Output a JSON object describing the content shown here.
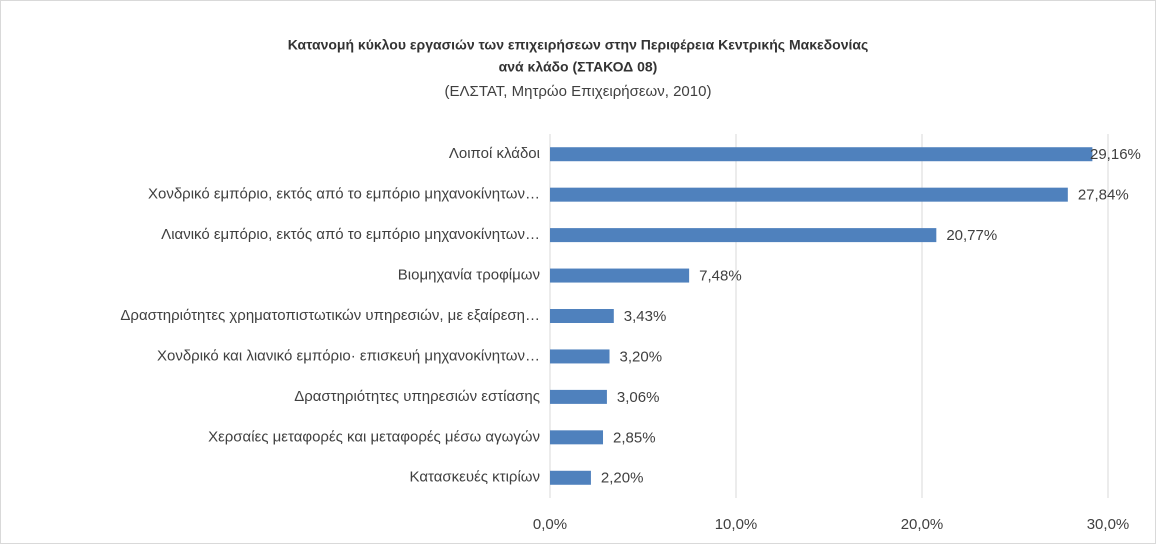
{
  "chart_data": {
    "type": "hbar",
    "title": [
      "Κατανομή κύκλου εργασιών των επιχειρήσεων στην Περιφέρεια Κεντρικής Μακεδονίας",
      "ανά κλάδο (ΣΤΑΚΟΔ 08)"
    ],
    "subtitle": "(ΕΛΣΤΑΤ, Μητρώο Επιχειρήσεων, 2010)",
    "categories": [
      "Λοιποί κλάδοι",
      "Χονδρικό εμπόριο, εκτός από το εμπόριο μηχανοκίνητων…",
      "Λιανικό εμπόριο, εκτός από το εμπόριο μηχανοκίνητων…",
      "Βιομηχανία τροφίμων",
      "Δραστηριότητες χρηματοπιστωτικών υπηρεσιών, με εξαίρεση…",
      "Χονδρικό και λιανικό εμπόριο· επισκευή μηχανοκίνητων…",
      "Δραστηριότητες υπηρεσιών εστίασης",
      "Χερσαίες μεταφορές και μεταφορές μέσω αγωγών",
      "Κατασκευές κτιρίων"
    ],
    "values": [
      29.16,
      27.84,
      20.77,
      7.48,
      3.43,
      3.2,
      3.06,
      2.85,
      2.2
    ],
    "value_labels": [
      "29,16%",
      "27,84%",
      "20,77%",
      "7,48%",
      "3,43%",
      "3,20%",
      "3,06%",
      "2,85%",
      "2,20%"
    ],
    "color": "#4f81bd",
    "xlim": [
      0,
      30
    ],
    "xticks": [
      {
        "value": 0,
        "label": "0,0%"
      },
      {
        "value": 10,
        "label": "10,0%"
      },
      {
        "value": 20,
        "label": "20,0%"
      },
      {
        "value": 30,
        "label": "30,0%"
      }
    ],
    "grid": true
  }
}
